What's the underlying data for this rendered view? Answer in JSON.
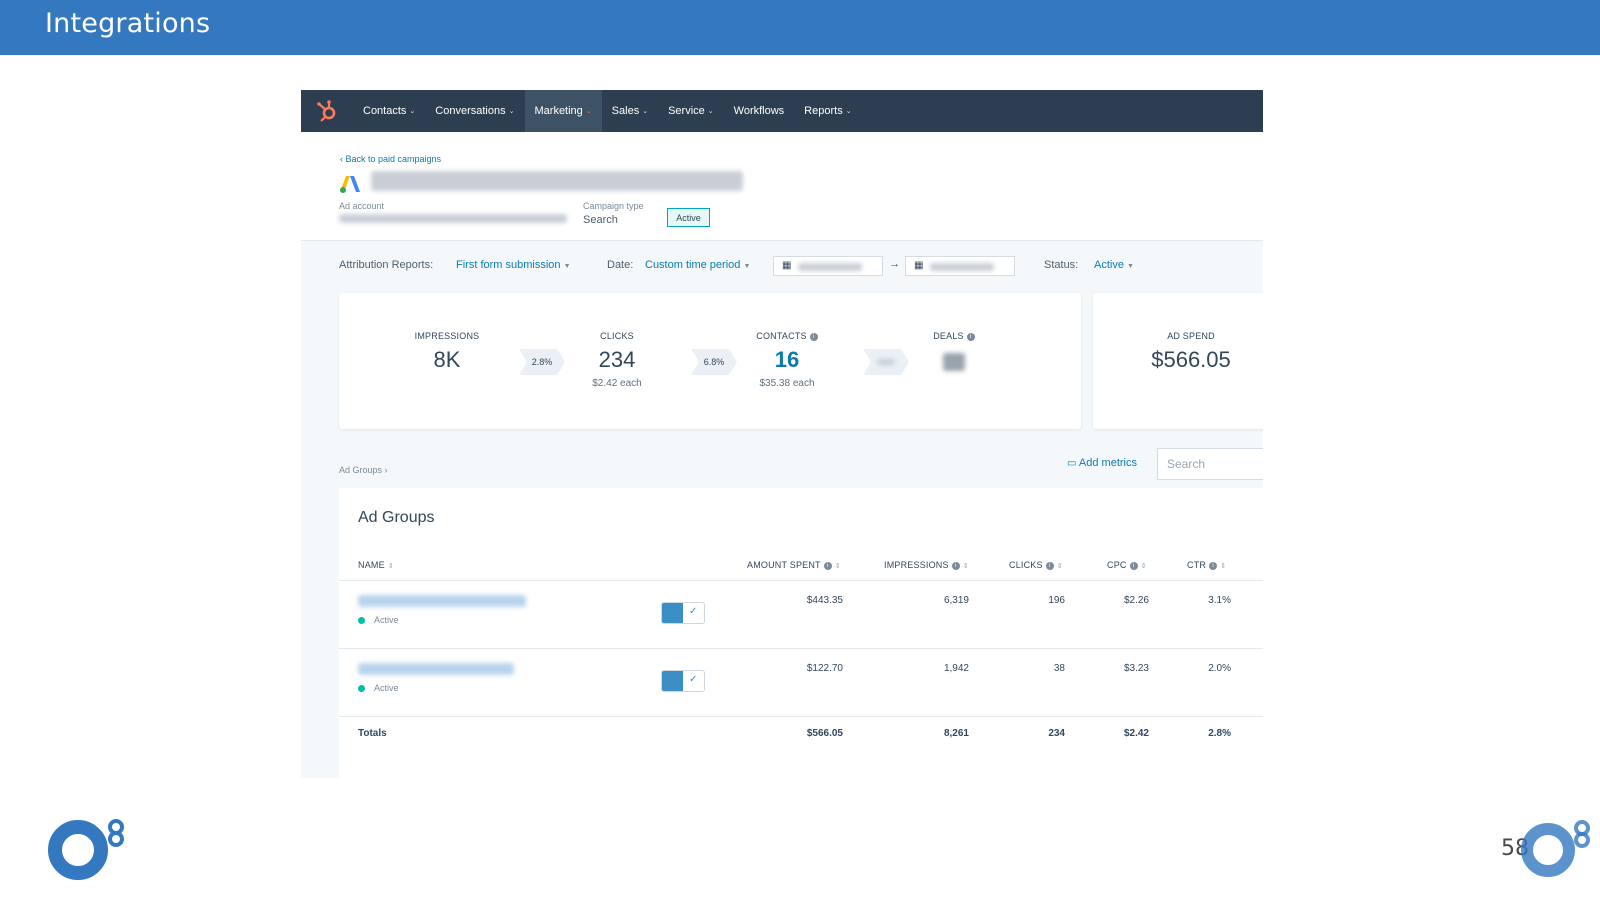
{
  "slide": {
    "title": "Integrations",
    "page_number": "58",
    "brand_color": "#3478c0"
  },
  "nav": {
    "logo_icon": "hubspot-sprocket-icon",
    "items": [
      {
        "label": "Contacts",
        "has_caret": true,
        "active": false
      },
      {
        "label": "Conversations",
        "has_caret": true,
        "active": false
      },
      {
        "label": "Marketing",
        "has_caret": true,
        "active": true
      },
      {
        "label": "Sales",
        "has_caret": true,
        "active": false
      },
      {
        "label": "Service",
        "has_caret": true,
        "active": false
      },
      {
        "label": "Workflows",
        "has_caret": false,
        "active": false
      },
      {
        "label": "Reports",
        "has_caret": true,
        "active": false
      }
    ]
  },
  "campaign": {
    "back_link": "‹ Back to paid campaigns",
    "ad_account_label": "Ad account",
    "campaign_type_label": "Campaign type",
    "campaign_type_value": "Search",
    "status_chip": "Active"
  },
  "filters": {
    "attribution_label": "Attribution Reports:",
    "attribution_value": "First form submission",
    "date_label": "Date:",
    "date_value": "Custom time period",
    "arrow": "→",
    "status_label": "Status:",
    "status_value": "Active"
  },
  "kpis": {
    "impressions": {
      "label": "IMPRESSIONS",
      "value": "8K"
    },
    "rate1": "2.8%",
    "clicks": {
      "label": "CLICKS",
      "value": "234",
      "sub": "$2.42 each"
    },
    "rate2": "6.8%",
    "contacts": {
      "label": "CONTACTS",
      "value": "16",
      "sub": "$35.38 each"
    },
    "deals": {
      "label": "DEALS"
    },
    "ad_spend": {
      "label": "AD SPEND",
      "value": "$566.05"
    }
  },
  "ad_groups": {
    "breadcrumb": "Ad Groups ›",
    "add_metrics": "Add metrics",
    "search_placeholder": "Search",
    "title": "Ad Groups",
    "columns": {
      "name": "NAME",
      "amount_spent": "AMOUNT SPENT",
      "impressions": "IMPRESSIONS",
      "clicks": "CLICKS",
      "cpc": "CPC",
      "ctr": "CTR"
    },
    "rows": [
      {
        "status": "Active",
        "amount_spent": "$443.35",
        "impressions": "6,319",
        "clicks": "196",
        "cpc": "$2.26",
        "ctr": "3.1%"
      },
      {
        "status": "Active",
        "amount_spent": "$122.70",
        "impressions": "1,942",
        "clicks": "38",
        "cpc": "$3.23",
        "ctr": "2.0%"
      }
    ],
    "totals": {
      "label": "Totals",
      "amount_spent": "$566.05",
      "impressions": "8,261",
      "clicks": "234",
      "cpc": "$2.42",
      "ctr": "2.8%"
    }
  }
}
